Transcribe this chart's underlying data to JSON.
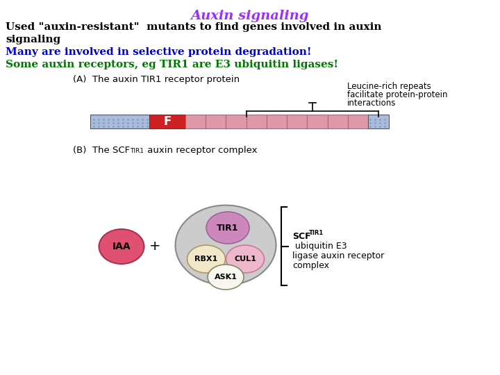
{
  "title": "Auxin signaling",
  "title_color": "#9B30FF",
  "line1": "Used \"auxin-resistant\"  mutants to find genes involved in auxin signaling",
  "line1_color": "#000000",
  "line2": "Many are involved in selective protein degradation!",
  "line2_color": "#0000CC",
  "line3": "Some auxin receptors, eg TIR1 are E3 ubiquitin ligases!",
  "line3_color": "#007700",
  "bg_color": "#FFFFFF",
  "panel_a_label": "(A)  The auxin TIR1 receptor protein",
  "brace_label1": "Leucine-rich repeats",
  "brace_label2": "facilitate protein-protein",
  "brace_label3": "interactions",
  "bar_blue": "#AABBDD",
  "bar_red": "#CC2222",
  "bar_pink": "#DD99AA",
  "repeat_n": 9,
  "scf_rest": " ubiquitin E3\nligase auxin receptor\ncomplex",
  "iaa_color": "#E05070",
  "iaa_edge": "#AA3050",
  "outer_ellipse_color": "#CCCCCC",
  "outer_ellipse_edge": "#888888",
  "tir1_color": "#CC88BB",
  "tir1_edge": "#996699",
  "rbx1_color": "#F0E8C8",
  "rbx1_edge": "#AA9966",
  "cul1_color": "#EEB8CC",
  "cul1_edge": "#CC7799",
  "ask1_color": "#F8F8F0",
  "ask1_edge": "#888866"
}
